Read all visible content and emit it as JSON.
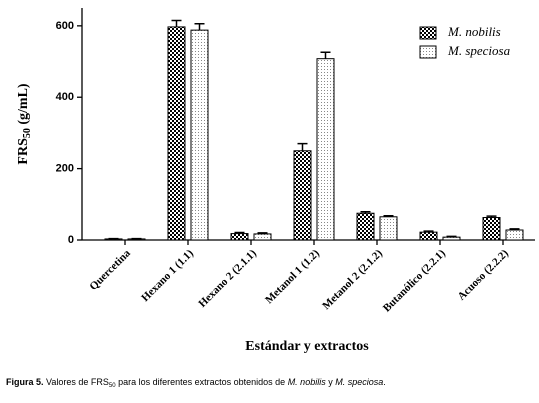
{
  "chart_data": {
    "type": "bar",
    "x_label": "Estándar y extractos",
    "y_label": {
      "main": "FRS",
      "sub": "50",
      "unit": "(g/mL)"
    },
    "categories": [
      "Quercetina",
      "Hexano 1 (1.1)",
      "Hexano 2 (2.1.1)",
      "Metanol 1 (1.2)",
      "Metanol 2 (2.1.2)",
      "Butanólico (2.2.1)",
      "Acuoso (2.2.2)"
    ],
    "series": [
      {
        "name": "M. nobilis",
        "color": "#000000",
        "pattern": "checker",
        "values": [
          3,
          597,
          18,
          250,
          75,
          22,
          63
        ],
        "errors": [
          1,
          18,
          3,
          20,
          4,
          3,
          4
        ]
      },
      {
        "name": "M. speciosa",
        "color": "#888888",
        "pattern": "dots",
        "values": [
          3,
          588,
          17,
          508,
          65,
          8,
          28
        ],
        "errors": [
          1,
          18,
          3,
          18,
          3,
          2,
          3
        ]
      }
    ],
    "ylim": [
      0,
      650
    ],
    "yticks": [
      0,
      200,
      400,
      600
    ],
    "legend": "upper right",
    "caption": [
      {
        "text": "Figura 5.",
        "bold": true
      },
      {
        "text": " Valores de FRS"
      },
      {
        "text": "50",
        "sub": true
      },
      {
        "text": " para los diferentes extractos obtenidos de "
      },
      {
        "text": "M. nobilis",
        "italic": true
      },
      {
        "text": " y "
      },
      {
        "text": "M. speciosa",
        "italic": true
      },
      {
        "text": "."
      }
    ]
  }
}
